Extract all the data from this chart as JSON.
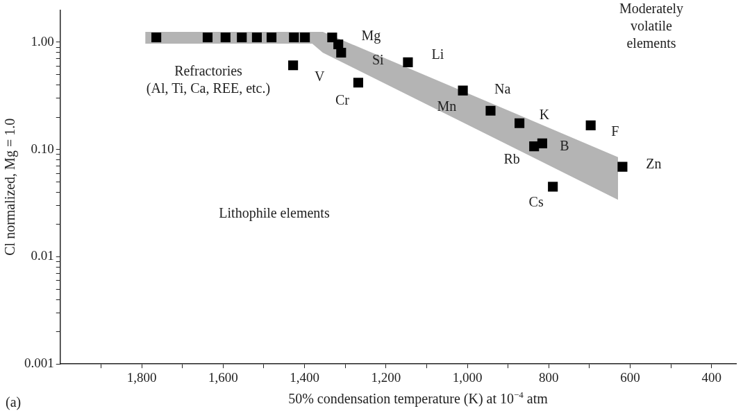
{
  "chart_data": {
    "type": "scatter",
    "xlabel": "50% condensation temperature (K) at 10$^{−4}$ atm",
    "ylabel": "Cl normalized, Mg = 1.0",
    "log": "y",
    "grid": false,
    "legend": false,
    "marker": "square",
    "xlim": [
      2000,
      340
    ],
    "ylim": [
      0.001,
      2
    ],
    "xticks": [
      {
        "value": 1900,
        "label": null
      },
      {
        "value": 1800,
        "label": "1,800"
      },
      {
        "value": 1700,
        "label": null
      },
      {
        "value": 1600,
        "label": "1,600"
      },
      {
        "value": 1500,
        "label": null
      },
      {
        "value": 1400,
        "label": "1,400"
      },
      {
        "value": 1300,
        "label": null
      },
      {
        "value": 1200,
        "label": "1,200"
      },
      {
        "value": 1100,
        "label": null
      },
      {
        "value": 1000,
        "label": "1,000"
      },
      {
        "value": 900,
        "label": null
      },
      {
        "value": 800,
        "label": "800"
      },
      {
        "value": 700,
        "label": null
      },
      {
        "value": 600,
        "label": "600"
      },
      {
        "value": 500,
        "label": null
      },
      {
        "value": 400,
        "label": "400"
      }
    ],
    "yticks": [
      {
        "value": 0.001,
        "label": "0.001"
      },
      {
        "value": 0.002,
        "label": null
      },
      {
        "value": 0.003,
        "label": null
      },
      {
        "value": 0.004,
        "label": null
      },
      {
        "value": 0.005,
        "label": null
      },
      {
        "value": 0.006,
        "label": null
      },
      {
        "value": 0.007,
        "label": null
      },
      {
        "value": 0.008,
        "label": null
      },
      {
        "value": 0.009,
        "label": null
      },
      {
        "value": 0.01,
        "label": "0.01"
      },
      {
        "value": 0.02,
        "label": null
      },
      {
        "value": 0.03,
        "label": null
      },
      {
        "value": 0.04,
        "label": null
      },
      {
        "value": 0.05,
        "label": null
      },
      {
        "value": 0.06,
        "label": null
      },
      {
        "value": 0.07,
        "label": null
      },
      {
        "value": 0.08,
        "label": null
      },
      {
        "value": 0.09,
        "label": null
      },
      {
        "value": 0.1,
        "label": "0.10"
      },
      {
        "value": 0.2,
        "label": null
      },
      {
        "value": 0.3,
        "label": null
      },
      {
        "value": 0.4,
        "label": null
      },
      {
        "value": 0.5,
        "label": null
      },
      {
        "value": 0.6,
        "label": null
      },
      {
        "value": 0.7,
        "label": null
      },
      {
        "value": 0.8,
        "label": null
      },
      {
        "value": 0.9,
        "label": null
      },
      {
        "value": 1,
        "label": "1.00"
      }
    ],
    "series": [
      {
        "type": "area",
        "color": "#b4b4b4",
        "x": [
          1791,
          1381,
          1355,
          630
        ],
        "values": [
          null,
          null,
          null,
          null
        ],
        "lower": [
          0.97,
          0.97,
          0.8,
          0.034
        ],
        "upper": [
          1.25,
          1.25,
          1.25,
          0.085
        ]
      },
      {
        "color": "#000000",
        "x": [
          1764,
          1638,
          1594,
          1554,
          1517,
          1481,
          1426,
          1399,
          1332,
          1317,
          1310,
          1428,
          1268,
          1146,
          1011,
          943,
          872,
          697,
          816,
          836,
          619,
          790
        ],
        "values": [
          1.11,
          1.11,
          1.11,
          1.11,
          1.11,
          1.11,
          1.11,
          1.11,
          1.11,
          0.956,
          0.8,
          0.61,
          0.42,
          0.65,
          0.355,
          0.23,
          0.176,
          0.168,
          0.114,
          0.107,
          0.069,
          0.045
        ]
      }
    ],
    "annotations": [
      {
        "text": "Mg",
        "x": 1332,
        "y": 1.11
      },
      {
        "text": "Si",
        "x": 1310,
        "y": 0.8
      },
      {
        "text": "Li",
        "x": 1146,
        "y": 0.65
      },
      {
        "text": "V",
        "x": 1428,
        "y": 0.61
      },
      {
        "text": "Cr",
        "x": 1268,
        "y": 0.42
      },
      {
        "text": "Na",
        "x": 1011,
        "y": 0.355
      },
      {
        "text": "Mn",
        "x": 943,
        "y": 0.23
      },
      {
        "text": "K",
        "x": 872,
        "y": 0.176
      },
      {
        "text": "F",
        "x": 697,
        "y": 0.168
      },
      {
        "text": "B",
        "x": 816,
        "y": 0.114
      },
      {
        "text": "Rb",
        "x": 836,
        "y": 0.107
      },
      {
        "text": "Zn",
        "x": 619,
        "y": 0.069
      },
      {
        "text": "Cs",
        "x": 790,
        "y": 0.045
      },
      "Refractories\n(Al, Ti, Ca, REE, etc.)",
      "Lithophile elements",
      "Moderately\nvolatile\nelements",
      "(a)"
    ]
  }
}
